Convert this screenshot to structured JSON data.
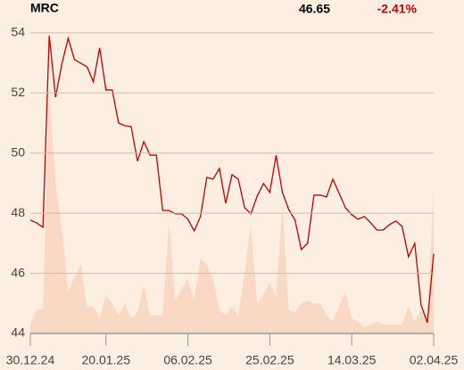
{
  "chart_data": {
    "type": "line",
    "title": "MRC",
    "last": 46.65,
    "change": {
      "value": -2.41,
      "label": "-2.41%"
    },
    "change_color": "#c00000",
    "ylim": [
      44,
      54.5
    ],
    "yticks": [
      44,
      46,
      48,
      50,
      52,
      54
    ],
    "xlim": [
      0,
      64
    ],
    "xticks": [
      {
        "value": 0,
        "label": "30.12.24"
      },
      {
        "value": 12,
        "label": "20.01.25"
      },
      {
        "value": 25,
        "label": "06.02.25"
      },
      {
        "value": 38,
        "label": "25.02.25"
      },
      {
        "value": 51,
        "label": "14.03.25"
      },
      {
        "value": 64,
        "label": "02.04.25"
      }
    ],
    "grid": true,
    "series": [
      {
        "type": "area",
        "color": "#f9d9c3",
        "values": [
          44.3,
          44.8,
          44.8,
          52.1,
          49.0,
          47.5,
          45.4,
          45.9,
          46.3,
          44.9,
          44.9,
          44.5,
          45.3,
          45.0,
          44.6,
          45.0,
          44.5,
          44.7,
          45.6,
          44.6,
          44.6,
          44.6,
          47.7,
          45.1,
          45.5,
          45.8,
          45.1,
          46.5,
          46.3,
          45.8,
          44.8,
          44.6,
          44.9,
          44.6,
          46.0,
          47.6,
          45.0,
          45.3,
          45.7,
          45.2,
          48.3,
          44.8,
          44.7,
          45.0,
          45.1,
          45.0,
          45.0,
          44.6,
          44.4,
          44.9,
          45.4,
          44.5,
          44.4,
          44.2,
          44.3,
          44.4,
          44.3,
          44.3,
          44.3,
          44.3,
          44.9,
          44.4,
          44.8,
          44.5,
          48.8
        ]
      },
      {
        "type": "line",
        "color": "#c00000",
        "values": [
          47.77,
          47.68,
          47.53,
          53.91,
          51.86,
          52.96,
          53.82,
          53.11,
          52.99,
          52.87,
          52.37,
          53.5,
          52.1,
          52.1,
          51.0,
          50.91,
          50.88,
          49.73,
          50.38,
          49.93,
          49.93,
          48.09,
          48.09,
          47.98,
          47.98,
          47.8,
          47.41,
          47.89,
          49.19,
          49.13,
          49.49,
          48.33,
          49.28,
          49.13,
          48.18,
          47.98,
          48.57,
          48.99,
          48.69,
          49.93,
          48.69,
          48.12,
          47.77,
          46.79,
          47.0,
          48.6,
          48.6,
          48.54,
          49.13,
          48.66,
          48.18,
          47.95,
          47.8,
          47.89,
          47.68,
          47.44,
          47.44,
          47.62,
          47.74,
          47.56,
          46.55,
          47.0,
          44.95,
          44.36,
          46.65
        ]
      }
    ]
  }
}
